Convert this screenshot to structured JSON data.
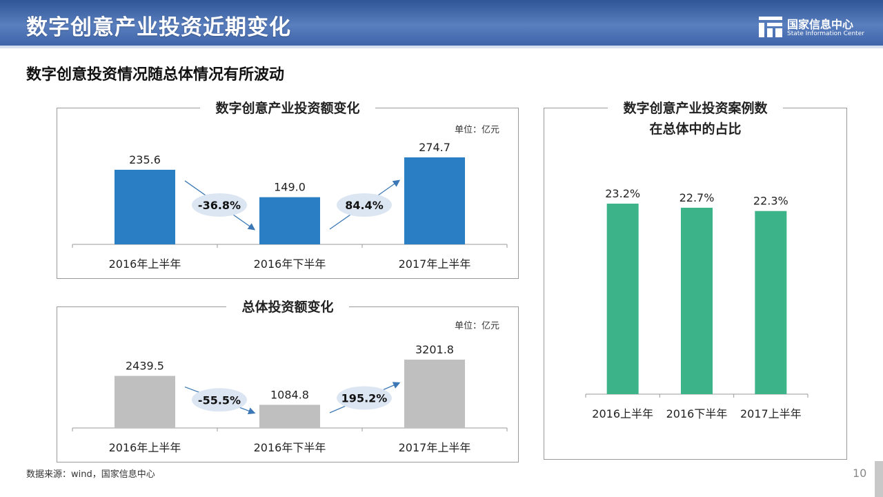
{
  "header": {
    "title": "数字创意产业投资近期变化",
    "logo_cn": "国家信息中心",
    "logo_en": "State Information Center"
  },
  "subtitle": "数字创意投资情况随总体情况有所波动",
  "footer": {
    "source": "数据来源：wind，国家信息中心",
    "page": "10"
  },
  "colors": {
    "blue_bar": "#2a7fc4",
    "gray_bar": "#bfbfbf",
    "green_bar": "#3db38a",
    "bubble": "#dce6f2",
    "arrow": "#3c78b5"
  },
  "chart_data": [
    {
      "type": "bar",
      "title": "数字创意产业投资额变化",
      "unit": "单位：亿元",
      "categories": [
        "2016年上半年",
        "2016年下半年",
        "2017年上半年"
      ],
      "values": [
        235.6,
        149.0,
        274.7
      ],
      "value_labels": [
        "235.6",
        "149.0",
        "274.7"
      ],
      "changes": [
        "-36.8%",
        "84.4%"
      ]
    },
    {
      "type": "bar",
      "title": "总体投资额变化",
      "unit": "单位：亿元",
      "categories": [
        "2016年上半年",
        "2016年下半年",
        "2017年上半年"
      ],
      "values": [
        2439.5,
        1084.8,
        3201.8
      ],
      "value_labels": [
        "2439.5",
        "1084.8",
        "3201.8"
      ],
      "changes": [
        "-55.5%",
        "195.2%"
      ]
    },
    {
      "type": "bar",
      "title": "数字创意产业投资案例数在总体中的占比",
      "title_lines": [
        "数字创意产业投资案例数",
        "在总体中的占比"
      ],
      "categories": [
        "2016上半年",
        "2016下半年",
        "2017上半年"
      ],
      "values": [
        23.2,
        22.7,
        22.3
      ],
      "value_labels": [
        "23.2%",
        "22.7%",
        "22.3%"
      ]
    }
  ]
}
